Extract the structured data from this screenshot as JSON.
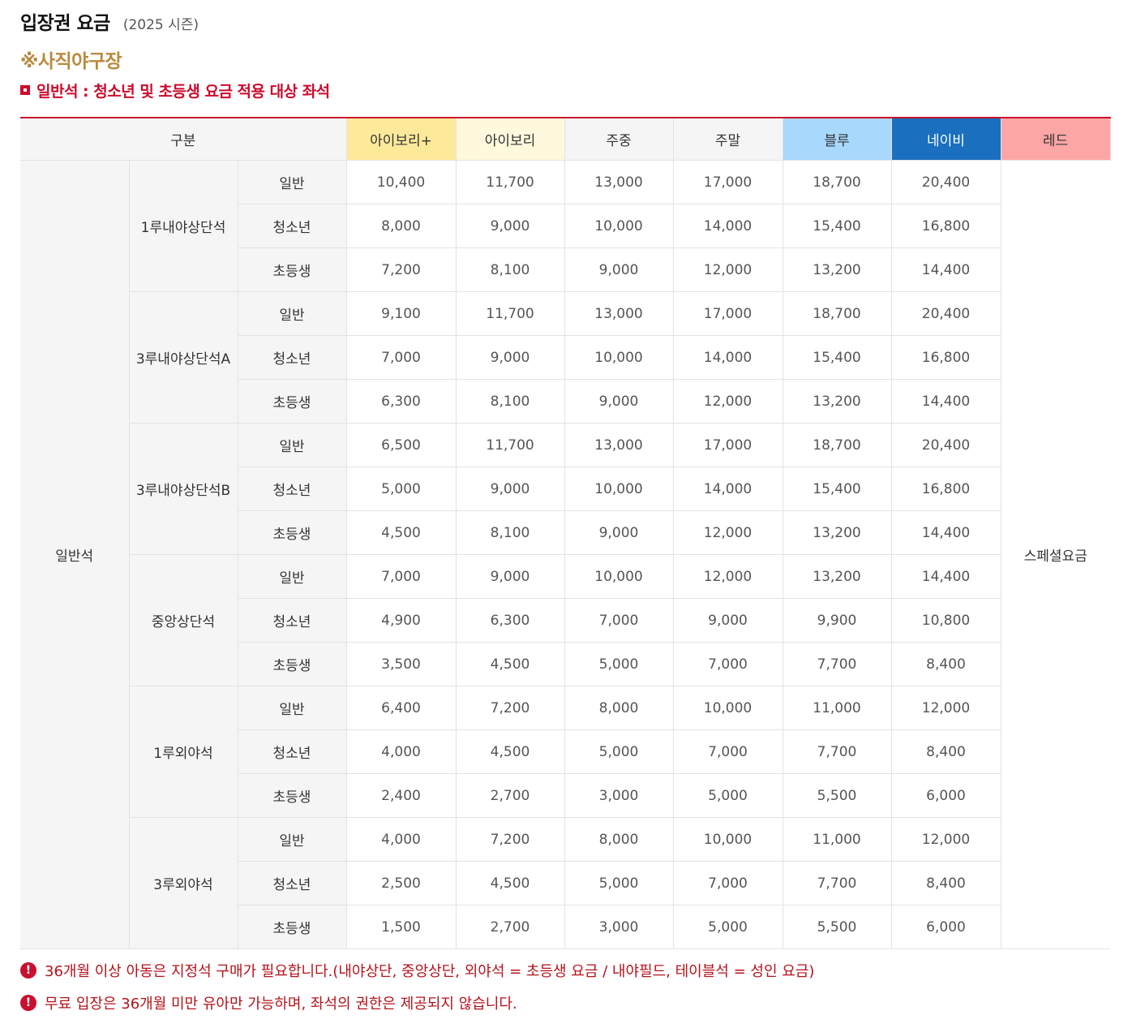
{
  "header": {
    "title": "입장권 요금",
    "season": "(2025 시즌)",
    "stadium": "※사직야구장",
    "notice": "일반석 : 청소년 및 초등생 요금 적용 대상 좌석"
  },
  "table": {
    "head_label": "구분",
    "columns": [
      {
        "label": "아이보리+",
        "bg": "#fde99a",
        "color": "#333333"
      },
      {
        "label": "아이보리",
        "bg": "#fef8dc",
        "color": "#333333"
      },
      {
        "label": "주중",
        "bg": "#f5f5f5",
        "color": "#333333"
      },
      {
        "label": "주말",
        "bg": "#f5f5f5",
        "color": "#333333"
      },
      {
        "label": "블루",
        "bg": "#a9d8fd",
        "color": "#333333"
      },
      {
        "label": "네이비",
        "bg": "#1a6fbf",
        "color": "#ffffff"
      },
      {
        "label": "레드",
        "bg": "#fda6a6",
        "color": "#333333"
      }
    ],
    "group_label": "일반석",
    "special_label": "스페셜요금",
    "sections": [
      {
        "name": "1루내야상단석",
        "rows": [
          {
            "age": "일반",
            "prices": [
              "10,400",
              "11,700",
              "13,000",
              "17,000",
              "18,700",
              "20,400"
            ]
          },
          {
            "age": "청소년",
            "prices": [
              "8,000",
              "9,000",
              "10,000",
              "14,000",
              "15,400",
              "16,800"
            ]
          },
          {
            "age": "초등생",
            "prices": [
              "7,200",
              "8,100",
              "9,000",
              "12,000",
              "13,200",
              "14,400"
            ]
          }
        ]
      },
      {
        "name": "3루내야상단석A",
        "rows": [
          {
            "age": "일반",
            "prices": [
              "9,100",
              "11,700",
              "13,000",
              "17,000",
              "18,700",
              "20,400"
            ]
          },
          {
            "age": "청소년",
            "prices": [
              "7,000",
              "9,000",
              "10,000",
              "14,000",
              "15,400",
              "16,800"
            ]
          },
          {
            "age": "초등생",
            "prices": [
              "6,300",
              "8,100",
              "9,000",
              "12,000",
              "13,200",
              "14,400"
            ]
          }
        ]
      },
      {
        "name": "3루내야상단석B",
        "rows": [
          {
            "age": "일반",
            "prices": [
              "6,500",
              "11,700",
              "13,000",
              "17,000",
              "18,700",
              "20,400"
            ]
          },
          {
            "age": "청소년",
            "prices": [
              "5,000",
              "9,000",
              "10,000",
              "14,000",
              "15,400",
              "16,800"
            ]
          },
          {
            "age": "초등생",
            "prices": [
              "4,500",
              "8,100",
              "9,000",
              "12,000",
              "13,200",
              "14,400"
            ]
          }
        ]
      },
      {
        "name": "중앙상단석",
        "rows": [
          {
            "age": "일반",
            "prices": [
              "7,000",
              "9,000",
              "10,000",
              "12,000",
              "13,200",
              "14,400"
            ]
          },
          {
            "age": "청소년",
            "prices": [
              "4,900",
              "6,300",
              "7,000",
              "9,000",
              "9,900",
              "10,800"
            ]
          },
          {
            "age": "초등생",
            "prices": [
              "3,500",
              "4,500",
              "5,000",
              "7,000",
              "7,700",
              "8,400"
            ]
          }
        ]
      },
      {
        "name": "1루외야석",
        "rows": [
          {
            "age": "일반",
            "prices": [
              "6,400",
              "7,200",
              "8,000",
              "10,000",
              "11,000",
              "12,000"
            ]
          },
          {
            "age": "청소년",
            "prices": [
              "4,000",
              "4,500",
              "5,000",
              "7,000",
              "7,700",
              "8,400"
            ]
          },
          {
            "age": "초등생",
            "prices": [
              "2,400",
              "2,700",
              "3,000",
              "5,000",
              "5,500",
              "6,000"
            ]
          }
        ]
      },
      {
        "name": "3루외야석",
        "rows": [
          {
            "age": "일반",
            "prices": [
              "4,000",
              "7,200",
              "8,000",
              "10,000",
              "11,000",
              "12,000"
            ]
          },
          {
            "age": "청소년",
            "prices": [
              "2,500",
              "4,500",
              "5,000",
              "7,000",
              "7,700",
              "8,400"
            ]
          },
          {
            "age": "초등생",
            "prices": [
              "1,500",
              "2,700",
              "3,000",
              "5,000",
              "5,500",
              "6,000"
            ]
          }
        ]
      }
    ]
  },
  "footnotes": [
    {
      "icon": "exclamation-icon",
      "symbol": "!",
      "text": "36개월 이상 아동은 지정석 구매가 필요합니다.(내야상단, 중앙상단, 외야석 = 초등생 요금 / 내야필드, 테이블석 = 성인 요금)"
    },
    {
      "icon": "exclamation-icon",
      "symbol": "!",
      "text": "무료 입장은 36개월 미만 유아만 가능하며, 좌석의 권한은 제공되지 않습니다."
    }
  ],
  "colors": {
    "accent_red": "#c8102e",
    "stadium_gold": "#b88a3e"
  }
}
